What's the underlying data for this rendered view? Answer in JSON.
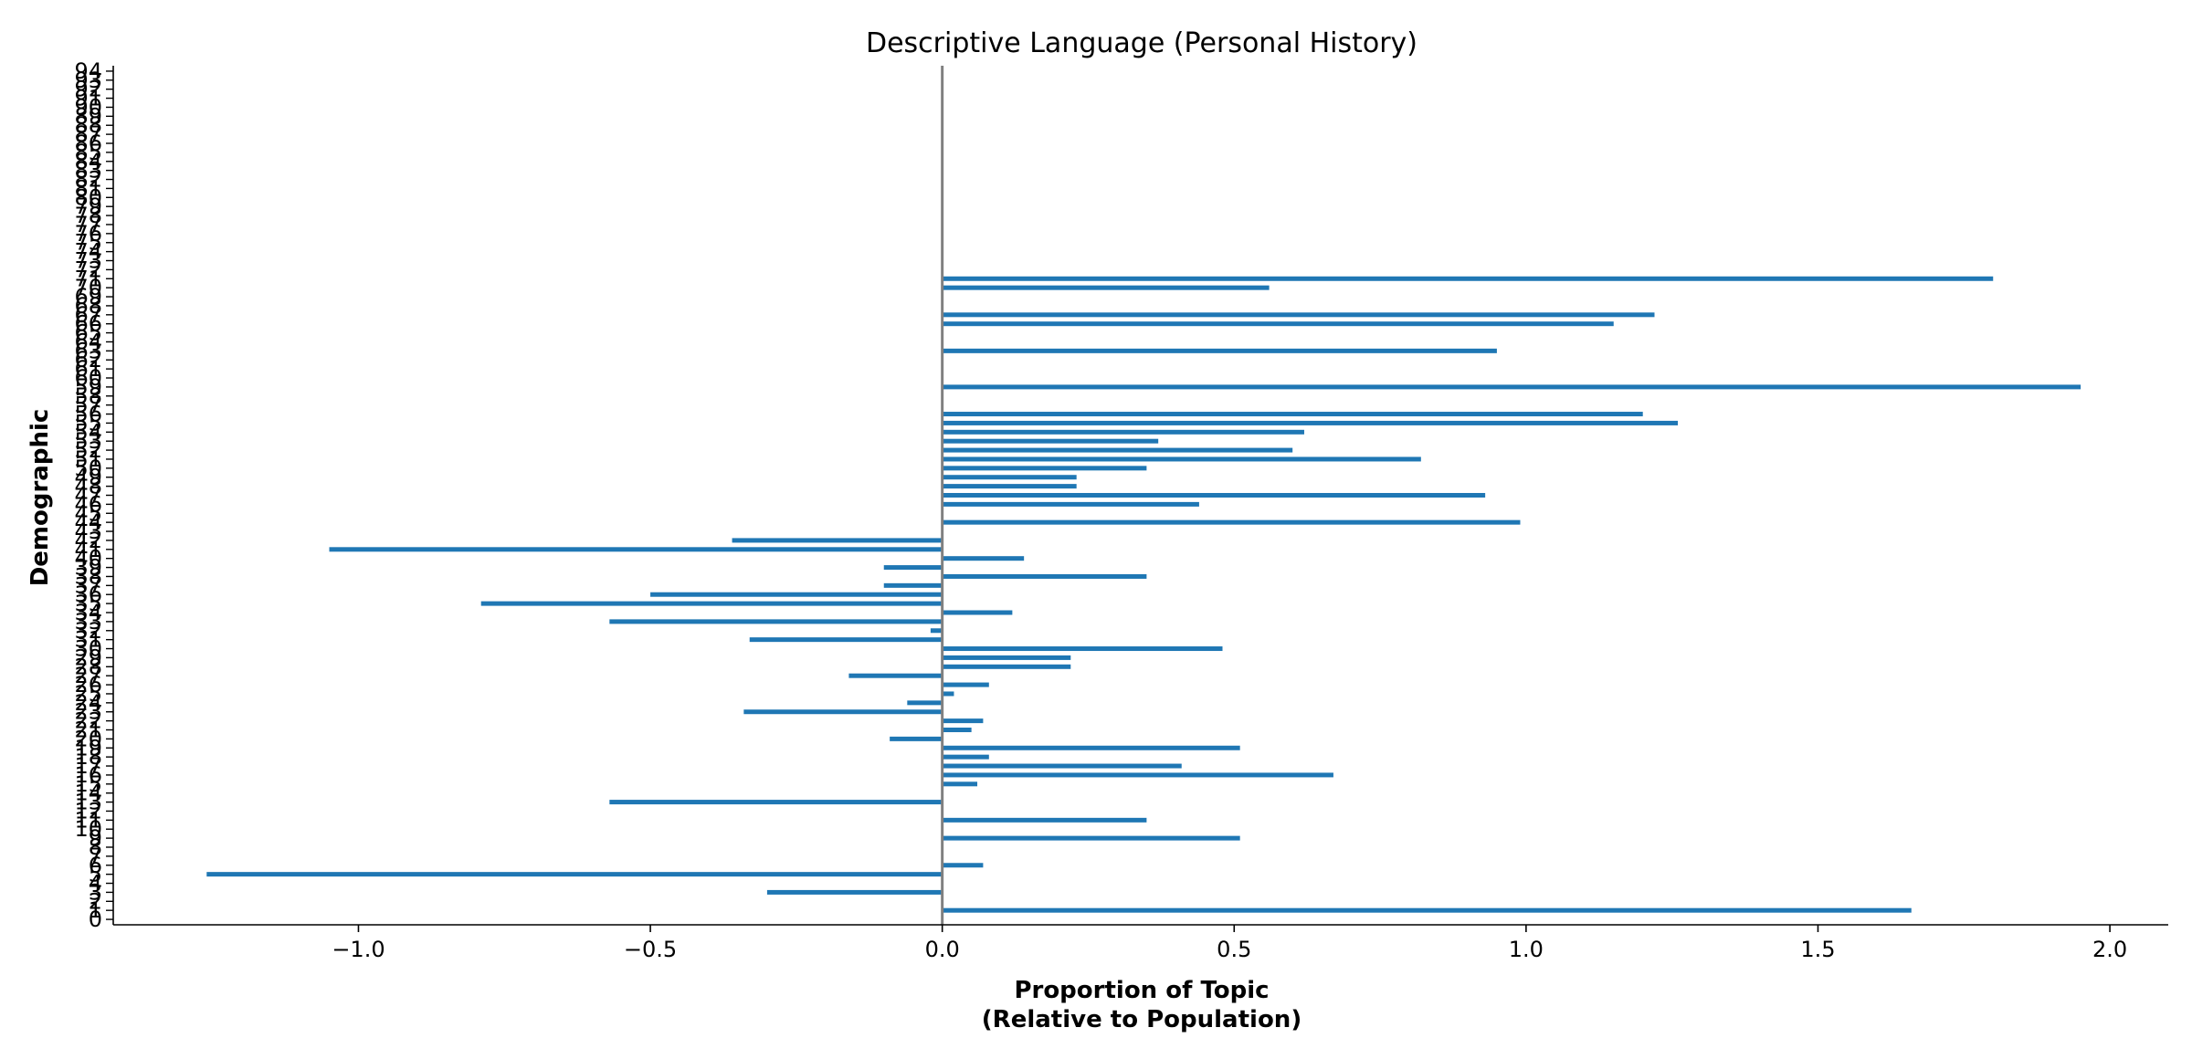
{
  "chart_data": {
    "type": "bar",
    "orientation": "horizontal",
    "title": "Descriptive Language (Personal History)",
    "xlabel_line1": "Proportion of Topic",
    "xlabel_line2": "(Relative to Population)",
    "ylabel": "Demographic",
    "xlim": [
      -1.42,
      2.1
    ],
    "ylim": [
      -0.6,
      94.6
    ],
    "xticks": [
      -1.0,
      -0.5,
      0.0,
      0.5,
      1.0,
      1.5,
      2.0
    ],
    "xtick_labels": [
      "−1.0",
      "−0.5",
      "0.0",
      "0.5",
      "1.0",
      "1.5",
      "2.0"
    ],
    "categories": [
      "0",
      "1",
      "2",
      "3",
      "4",
      "5",
      "6",
      "7",
      "8",
      "9",
      "10",
      "11",
      "12",
      "13",
      "14",
      "15",
      "16",
      "17",
      "18",
      "19",
      "20",
      "21",
      "22",
      "23",
      "24",
      "25",
      "26",
      "27",
      "28",
      "29",
      "30",
      "31",
      "32",
      "33",
      "34",
      "35",
      "36",
      "37",
      "38",
      "39",
      "40",
      "41",
      "42",
      "43",
      "44",
      "45",
      "46",
      "47",
      "48",
      "49",
      "50",
      "51",
      "52",
      "53",
      "54",
      "55",
      "56",
      "57",
      "58",
      "59",
      "60",
      "61",
      "62",
      "63",
      "64",
      "65",
      "66",
      "67",
      "68",
      "69",
      "70",
      "71",
      "72",
      "73",
      "74",
      "75",
      "76",
      "77",
      "78",
      "79",
      "80",
      "81",
      "82",
      "83",
      "84",
      "85",
      "86",
      "87",
      "88",
      "89",
      "90",
      "91",
      "92",
      "93",
      "94"
    ],
    "values": [
      0,
      1.66,
      0,
      -0.3,
      0,
      -1.26,
      0.07,
      0,
      0,
      0.51,
      0,
      0.35,
      0,
      -0.57,
      0,
      0.06,
      0.67,
      0.41,
      0.08,
      0.51,
      -0.09,
      0.05,
      0.07,
      -0.34,
      -0.06,
      0.02,
      0.08,
      -0.16,
      0.22,
      0.22,
      0.48,
      -0.33,
      -0.02,
      -0.57,
      0.12,
      -0.79,
      -0.5,
      -0.1,
      0.35,
      -0.1,
      0.14,
      -1.05,
      -0.36,
      0,
      0.99,
      0,
      0.44,
      0.93,
      0.23,
      0.23,
      0.35,
      0.82,
      0.6,
      0.37,
      0.62,
      1.26,
      1.2,
      0,
      0,
      1.95,
      0,
      0,
      0,
      0.95,
      0,
      0,
      1.15,
      1.22,
      0,
      0,
      0.56,
      1.8,
      0,
      0,
      0,
      0,
      0,
      0,
      0,
      0,
      0,
      0,
      0,
      0,
      0,
      0,
      0,
      0,
      0,
      0,
      0,
      0,
      0,
      0,
      0
    ],
    "bar_color": "#1f77b4",
    "zero_line_color": "#808080",
    "grid": false
  }
}
